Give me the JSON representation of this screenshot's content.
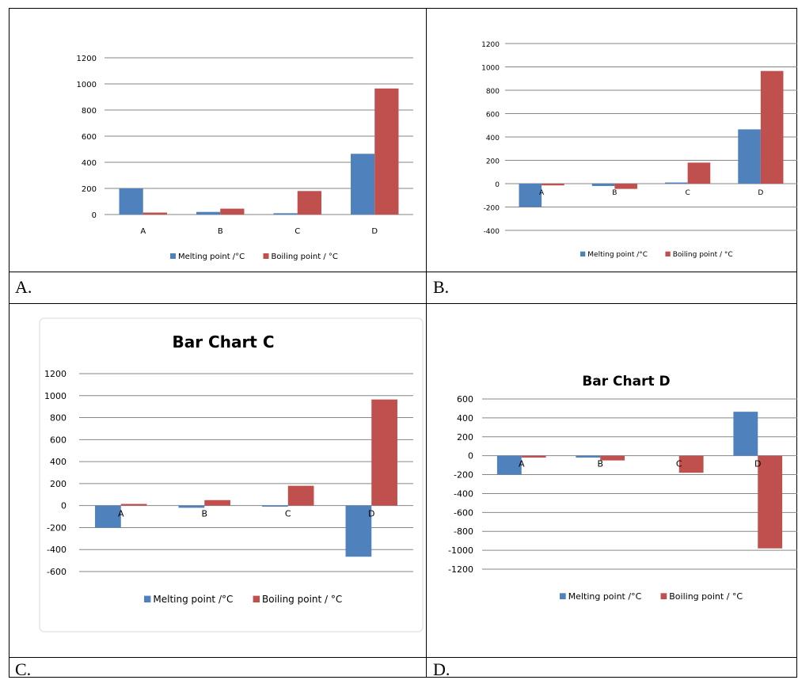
{
  "colors": {
    "melting": "#4F81BD",
    "boiling": "#C0504D",
    "grid": "#868686",
    "text": "#000000"
  },
  "labels": {
    "a": "A.",
    "b": "B.",
    "c": "C.",
    "d": "D."
  },
  "chart_data": [
    {
      "type": "bar",
      "title": "",
      "categories": [
        "A",
        "B",
        "C",
        "D"
      ],
      "series": [
        {
          "name": "Melting point /°C",
          "values": [
            200,
            20,
            10,
            465
          ]
        },
        {
          "name": "Boiling point / °C",
          "values": [
            15,
            45,
            180,
            965
          ]
        }
      ],
      "ylim": [
        0,
        1200
      ],
      "yticks": [
        "0",
        "200",
        "400",
        "600",
        "800",
        "1000",
        "1200"
      ],
      "grid": true,
      "legend": "bottom"
    },
    {
      "type": "bar",
      "title": "",
      "categories": [
        "A",
        "B",
        "C",
        "D"
      ],
      "series": [
        {
          "name": "Melting point /°C",
          "values": [
            -200,
            -20,
            10,
            465
          ]
        },
        {
          "name": "Boiling point / °C",
          "values": [
            -15,
            -45,
            180,
            965
          ]
        }
      ],
      "ylim": [
        -400,
        1200
      ],
      "yticks": [
        "-400",
        "-200",
        "0",
        "200",
        "400",
        "600",
        "800",
        "1000",
        "1200"
      ],
      "grid": true,
      "legend": "bottom"
    },
    {
      "type": "bar",
      "title": "Bar Chart C",
      "categories": [
        "A",
        "B",
        "C",
        "D"
      ],
      "series": [
        {
          "name": "Melting point /°C",
          "values": [
            -200,
            -20,
            -10,
            -465
          ]
        },
        {
          "name": "Boiling point / °C",
          "values": [
            15,
            50,
            180,
            965
          ]
        }
      ],
      "ylim": [
        -600,
        1200
      ],
      "yticks": [
        "-600",
        "-400",
        "-200",
        "0",
        "200",
        "400",
        "600",
        "800",
        "1000",
        "1200"
      ],
      "grid": true,
      "legend": "bottom"
    },
    {
      "type": "bar",
      "title": "Bar Chart D",
      "categories": [
        "A",
        "B",
        "C",
        "D"
      ],
      "series": [
        {
          "name": "Melting point /°C",
          "values": [
            -200,
            -20,
            0,
            465
          ]
        },
        {
          "name": "Boiling point / °C",
          "values": [
            -20,
            -50,
            -180,
            -980
          ]
        }
      ],
      "ylim": [
        -1200,
        600
      ],
      "yticks": [
        "-1200",
        "-1000",
        "-800",
        "-600",
        "-400",
        "-200",
        "0",
        "200",
        "400",
        "600"
      ],
      "grid": true,
      "legend": "bottom"
    }
  ]
}
